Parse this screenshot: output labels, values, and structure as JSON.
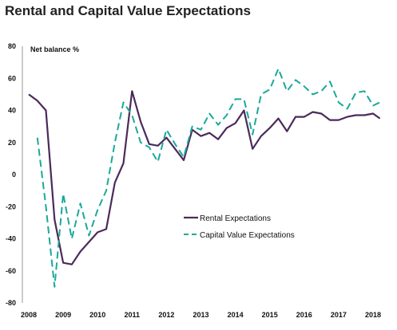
{
  "chart_data": {
    "type": "line",
    "title": "Rental and Capital Value Expectations",
    "ylabel": "Net balance %",
    "xlabel": "",
    "xlim": [
      2008,
      2018.2
    ],
    "ylim": [
      -80,
      80
    ],
    "x_ticks": [
      "2008",
      "2009",
      "2010",
      "2011",
      "2012",
      "2013",
      "2014",
      "2015",
      "2016",
      "2017",
      "2018"
    ],
    "y_ticks": [
      "80",
      "60",
      "40",
      "20",
      "0",
      "-20",
      "-40",
      "-60",
      "-80"
    ],
    "legend_position": "bottom-right",
    "grid": false,
    "colors": {
      "rental": "#4b2a5a",
      "capital": "#1aa999",
      "axis": "#999999"
    },
    "series": [
      {
        "name": "Rental Expectations",
        "style": "solid",
        "x": [
          2008,
          2008.25,
          2008.5,
          2008.75,
          2009,
          2009.25,
          2009.5,
          2009.75,
          2010,
          2010.25,
          2010.5,
          2010.75,
          2011,
          2011.25,
          2011.5,
          2011.75,
          2012,
          2012.25,
          2012.5,
          2012.75,
          2013,
          2013.25,
          2013.5,
          2013.75,
          2014,
          2014.25,
          2014.5,
          2014.75,
          2015,
          2015.25,
          2015.5,
          2015.75,
          2016,
          2016.25,
          2016.5,
          2016.75,
          2017,
          2017.25,
          2017.5,
          2017.75,
          2018,
          2018.2
        ],
        "values": [
          50,
          46,
          40,
          -28,
          -55,
          -56,
          -48,
          -42,
          -36,
          -34,
          -5,
          7,
          52,
          33,
          19,
          18,
          23,
          16,
          9,
          28,
          24,
          26,
          22,
          29,
          32,
          40,
          16,
          24,
          29,
          35,
          27,
          36,
          36,
          39,
          38,
          34,
          34,
          36,
          37,
          37,
          38,
          35
        ]
      },
      {
        "name": "Capital Value Expectations",
        "style": "dashed",
        "x": [
          2008.25,
          2008.5,
          2008.75,
          2009,
          2009.25,
          2009.5,
          2009.75,
          2010,
          2010.25,
          2010.5,
          2010.75,
          2011,
          2011.25,
          2011.5,
          2011.75,
          2012,
          2012.25,
          2012.5,
          2012.75,
          2013,
          2013.25,
          2013.5,
          2013.75,
          2014,
          2014.25,
          2014.5,
          2014.75,
          2015,
          2015.25,
          2015.5,
          2015.75,
          2016,
          2016.25,
          2016.5,
          2016.75,
          2017,
          2017.25,
          2017.5,
          2017.75,
          2018,
          2018.2
        ],
        "values": [
          23,
          -20,
          -70,
          -12,
          -40,
          -18,
          -38,
          -22,
          -10,
          20,
          45,
          37,
          20,
          17,
          8,
          28,
          19,
          11,
          30,
          28,
          38,
          31,
          37,
          47,
          47,
          25,
          50,
          53,
          66,
          52,
          59,
          55,
          50,
          52,
          58,
          45,
          41,
          51,
          52,
          43,
          45
        ]
      }
    ]
  }
}
